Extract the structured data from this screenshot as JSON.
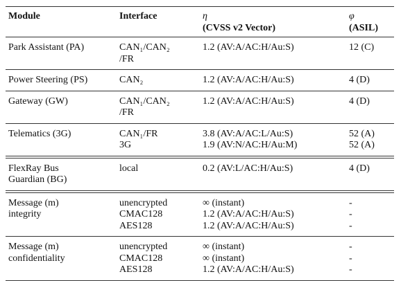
{
  "table": {
    "header": [
      [
        "Module"
      ],
      [
        "Interface"
      ],
      [
        "η",
        "(CVSS v2 Vector)"
      ],
      [
        "φ",
        "(ASIL)"
      ]
    ],
    "rows": [
      [
        [
          "Park Assistant (PA)"
        ],
        [
          "CAN₁/CAN₂",
          "/FR"
        ],
        [
          "1.2 (AV:A/AC:H/Au:S)"
        ],
        [
          "12 (C)"
        ]
      ],
      [
        [
          "Power Steering (PS)"
        ],
        [
          "CAN₂"
        ],
        [
          "1.2 (AV:A/AC:H/Au:S)"
        ],
        [
          "4 (D)"
        ]
      ],
      [
        [
          "Gateway (GW)"
        ],
        [
          "CAN₁/CAN₂",
          "/FR"
        ],
        [
          "1.2 (AV:A/AC:H/Au:S)"
        ],
        [
          "4 (D)"
        ]
      ],
      [
        [
          "Telematics (3G)"
        ],
        [
          "CAN₁/FR",
          "3G"
        ],
        [
          "3.8 (AV:A/AC:L/Au:S)",
          "1.9 (AV:N/AC:H/Au:M)"
        ],
        [
          "52 (A)",
          "52 (A)"
        ]
      ],
      [
        [
          "FlexRay Bus",
          "Guardian (BG)"
        ],
        [
          "local"
        ],
        [
          "0.2 (AV:L/AC:H/Au:S)"
        ],
        [
          "4 (D)"
        ]
      ],
      [
        [
          "Message (m)",
          "integrity"
        ],
        [
          "unencrypted",
          "CMAC128",
          "AES128"
        ],
        [
          "∞ (instant)",
          "1.2 (AV:A/AC:H/Au:S)",
          "1.2 (AV:A/AC:H/Au:S)"
        ],
        [
          "-",
          "-",
          "-"
        ]
      ],
      [
        [
          "Message (m)",
          "confidentiality"
        ],
        [
          "unencrypted",
          "CMAC128",
          "AES128"
        ],
        [
          "∞ (instant)",
          "∞ (instant)",
          "1.2 (AV:A/AC:H/Au:S)"
        ],
        [
          "-",
          "-",
          "-"
        ]
      ]
    ]
  }
}
